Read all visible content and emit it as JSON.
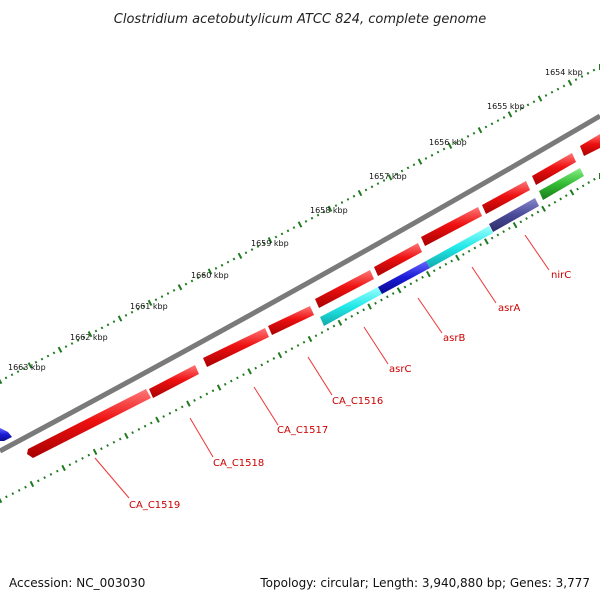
{
  "title": "Clostridium acetobutylicum ATCC 824, complete genome",
  "footer": {
    "accession": "Accession: NC_003030",
    "summary": "Topology: circular; Length: 3,940,880 bp; Genes: 3,777"
  },
  "ticks": {
    "unit": "kbp",
    "labels": [
      "1654 kbp",
      "1655 kbp",
      "1656 kbp",
      "1657 kbp",
      "1658 kbp",
      "1659 kbp",
      "1660 kbp",
      "1661 kbp",
      "1662 kbp",
      "1663 kbp"
    ]
  },
  "colors": {
    "backbone": "#7a7a7a",
    "ticks": "#1f7a1f",
    "gene_red": "#ee1111",
    "gene_cyan": "#22e8e8",
    "gene_blue": "#1a1ad6",
    "gene_slate": "#4a4a9a",
    "gene_green": "#33bb33",
    "label_text": "#cc0000"
  },
  "gene_labels": [
    "nirC",
    "asrA",
    "asrB",
    "asrC",
    "CA_C1516",
    "CA_C1517",
    "CA_C1518",
    "CA_C1519"
  ]
}
